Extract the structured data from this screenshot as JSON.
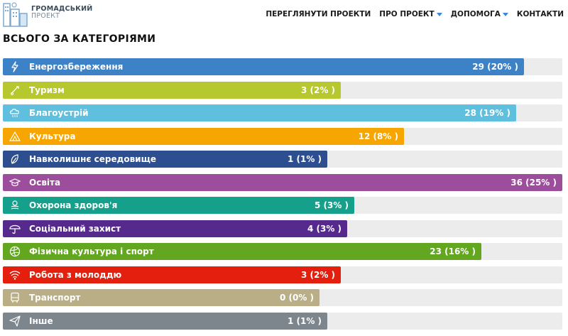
{
  "logo": {
    "line1": "ГРОМАДСЬКИЙ",
    "line2": "ПРОЕКТ"
  },
  "nav": [
    {
      "label": "ПЕРЕГЛЯНУТИ ПРОЕКТИ",
      "dropdown": false
    },
    {
      "label": "ПРО ПРОЕКТ",
      "dropdown": true
    },
    {
      "label": "ДОПОМОГА",
      "dropdown": true
    },
    {
      "label": "КОНТАКТИ",
      "dropdown": false
    }
  ],
  "page_title": "ВСЬОГО ЗА КАТЕГОРІЯМИ",
  "categories": [
    {
      "label": "Енергозбереження",
      "value_text": "29 (20% )",
      "fill_fraction": 0.932,
      "color": "#3d82c6",
      "icon": "lightning-icon"
    },
    {
      "label": "Туризм",
      "value_text": "3 (2% )",
      "fill_fraction": 0.604,
      "color": "#b7c82f",
      "icon": "tourism-icon"
    },
    {
      "label": "Благоустрій",
      "value_text": "28 (19% )",
      "fill_fraction": 0.918,
      "color": "#5ebfdf",
      "icon": "landscaping-icon"
    },
    {
      "label": "Культура",
      "value_text": "12 (8% )",
      "fill_fraction": 0.717,
      "color": "#f7a500",
      "icon": "culture-icon"
    },
    {
      "label": "Навколишнє середовище",
      "value_text": "1 (1% )",
      "fill_fraction": 0.58,
      "color": "#2d4f8f",
      "icon": "leaf-icon"
    },
    {
      "label": "Освіта",
      "value_text": "36 (25% )",
      "fill_fraction": 1.0,
      "color": "#9c4d9c",
      "icon": "graduation-cap-icon"
    },
    {
      "label": "Охорона здоров'я",
      "value_text": "5 (3% )",
      "fill_fraction": 0.628,
      "color": "#14a08b",
      "icon": "health-icon"
    },
    {
      "label": "Соціальний захист",
      "value_text": "4 (3% )",
      "fill_fraction": 0.616,
      "color": "#562a8c",
      "icon": "umbrella-icon"
    },
    {
      "label": "Фізична культура і спорт",
      "value_text": "23 (16% )",
      "fill_fraction": 0.855,
      "color": "#63a620",
      "icon": "volleyball-icon"
    },
    {
      "label": "Робота з молоддю",
      "value_text": "3 (2% )",
      "fill_fraction": 0.604,
      "color": "#e41f0d",
      "icon": "wifi-icon"
    },
    {
      "label": "Транспорт",
      "value_text": "0 (0% )",
      "fill_fraction": 0.566,
      "color": "#b9ae85",
      "icon": "bus-icon"
    },
    {
      "label": "Інше",
      "value_text": "1 (1% )",
      "fill_fraction": 0.58,
      "color": "#7d858d",
      "icon": "paper-plane-icon"
    }
  ]
}
